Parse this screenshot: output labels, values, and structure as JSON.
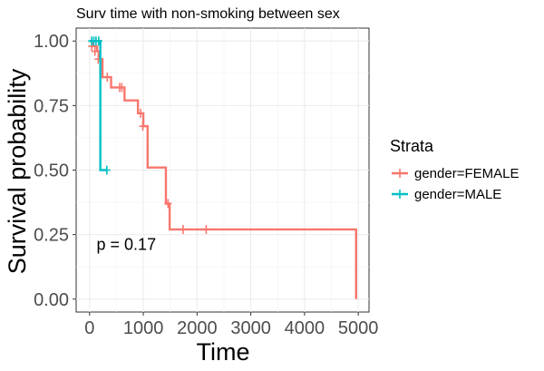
{
  "chart_data": {
    "type": "line",
    "title": "Surv time with non-smoking between sex",
    "xlabel": "Time",
    "ylabel": "Survival probability",
    "xlim": [
      -250,
      5200
    ],
    "ylim": [
      -0.05,
      1.05
    ],
    "x_ticks": [
      0,
      1000,
      2000,
      3000,
      4000,
      5000
    ],
    "y_ticks": [
      0.0,
      0.25,
      0.5,
      0.75,
      1.0
    ],
    "x_tick_labels": [
      "0",
      "1000",
      "2000",
      "3000",
      "4000",
      "5000"
    ],
    "y_tick_labels": [
      "0.00",
      "0.25",
      "0.50",
      "0.75",
      "1.00"
    ],
    "grid": true,
    "legend": {
      "title": "Strata",
      "position": "right"
    },
    "annotation": "p = 0.17",
    "annotation_at": [
      130,
      0.19
    ],
    "series": [
      {
        "name": "gender=FEMALE",
        "color": "#F8766D",
        "steps": [
          [
            0,
            1.0
          ],
          [
            60,
            0.98
          ],
          [
            140,
            0.96
          ],
          [
            170,
            0.93
          ],
          [
            240,
            0.86
          ],
          [
            400,
            0.82
          ],
          [
            650,
            0.77
          ],
          [
            900,
            0.72
          ],
          [
            1000,
            0.67
          ],
          [
            1080,
            0.51
          ],
          [
            1420,
            0.37
          ],
          [
            1490,
            0.27
          ],
          [
            4960,
            0.0
          ]
        ],
        "end_x": 4960,
        "censors": [
          [
            40,
            0.98
          ],
          [
            100,
            0.96
          ],
          [
            160,
            0.93
          ],
          [
            330,
            0.86
          ],
          [
            560,
            0.82
          ],
          [
            600,
            0.82
          ],
          [
            950,
            0.72
          ],
          [
            990,
            0.67
          ],
          [
            1460,
            0.37
          ],
          [
            1740,
            0.27
          ],
          [
            2170,
            0.27
          ]
        ]
      },
      {
        "name": "gender=MALE",
        "color": "#00BFC4",
        "steps": [
          [
            0,
            1.0
          ],
          [
            200,
            0.5
          ]
        ],
        "end_x": 320,
        "censors": [
          [
            40,
            1.0
          ],
          [
            80,
            1.0
          ],
          [
            120,
            1.0
          ],
          [
            170,
            1.0
          ],
          [
            320,
            0.5
          ]
        ]
      }
    ]
  }
}
